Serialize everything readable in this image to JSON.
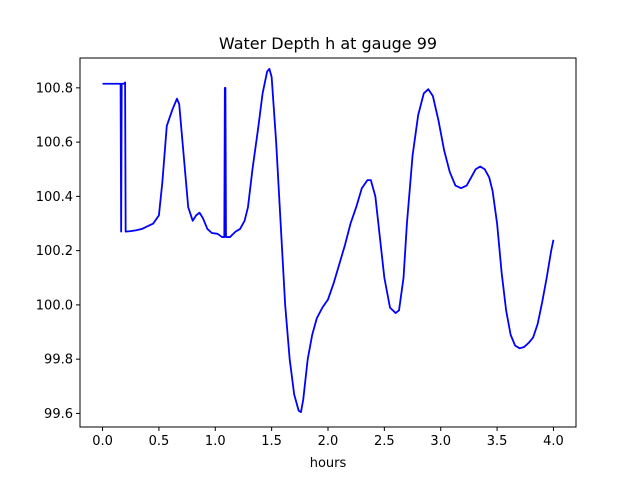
{
  "chart_data": {
    "type": "line",
    "title": "Water Depth h at gauge 99",
    "xlabel": "hours",
    "ylabel": "",
    "xlim": [
      -0.2,
      4.2
    ],
    "ylim": [
      99.55,
      100.91
    ],
    "grid": false,
    "legend": "none",
    "x_ticks": [
      {
        "value": 0.0,
        "label": "0.0"
      },
      {
        "value": 0.5,
        "label": "0.5"
      },
      {
        "value": 1.0,
        "label": "1.0"
      },
      {
        "value": 1.5,
        "label": "1.5"
      },
      {
        "value": 2.0,
        "label": "2.0"
      },
      {
        "value": 2.5,
        "label": "2.5"
      },
      {
        "value": 3.0,
        "label": "3.0"
      },
      {
        "value": 3.5,
        "label": "3.5"
      },
      {
        "value": 4.0,
        "label": "4.0"
      }
    ],
    "y_ticks": [
      {
        "value": 99.6,
        "label": "99.6"
      },
      {
        "value": 99.8,
        "label": "99.8"
      },
      {
        "value": 100.0,
        "label": "100.0"
      },
      {
        "value": 100.2,
        "label": "100.2"
      },
      {
        "value": 100.4,
        "label": "100.4"
      },
      {
        "value": 100.6,
        "label": "100.6"
      },
      {
        "value": 100.8,
        "label": "100.8"
      }
    ],
    "series": [
      {
        "color": "#0000ff",
        "points": [
          [
            0.0,
            100.815
          ],
          [
            0.16,
            100.815
          ],
          [
            0.165,
            100.27
          ],
          [
            0.17,
            100.815
          ],
          [
            0.19,
            100.815
          ],
          [
            0.2,
            100.82
          ],
          [
            0.205,
            100.27
          ],
          [
            0.25,
            100.272
          ],
          [
            0.3,
            100.275
          ],
          [
            0.35,
            100.28
          ],
          [
            0.4,
            100.29
          ],
          [
            0.45,
            100.3
          ],
          [
            0.5,
            100.33
          ],
          [
            0.53,
            100.45
          ],
          [
            0.57,
            100.66
          ],
          [
            0.62,
            100.72
          ],
          [
            0.66,
            100.76
          ],
          [
            0.68,
            100.74
          ],
          [
            0.72,
            100.55
          ],
          [
            0.76,
            100.36
          ],
          [
            0.8,
            100.31
          ],
          [
            0.83,
            100.33
          ],
          [
            0.86,
            100.34
          ],
          [
            0.89,
            100.32
          ],
          [
            0.93,
            100.28
          ],
          [
            0.97,
            100.265
          ],
          [
            1.02,
            100.262
          ],
          [
            1.06,
            100.25
          ],
          [
            1.08,
            100.25
          ],
          [
            1.085,
            100.8
          ],
          [
            1.09,
            100.8
          ],
          [
            1.095,
            100.25
          ],
          [
            1.13,
            100.25
          ],
          [
            1.18,
            100.27
          ],
          [
            1.22,
            100.28
          ],
          [
            1.26,
            100.31
          ],
          [
            1.29,
            100.36
          ],
          [
            1.33,
            100.5
          ],
          [
            1.38,
            100.65
          ],
          [
            1.42,
            100.78
          ],
          [
            1.46,
            100.86
          ],
          [
            1.48,
            100.87
          ],
          [
            1.5,
            100.84
          ],
          [
            1.54,
            100.6
          ],
          [
            1.58,
            100.3
          ],
          [
            1.62,
            100.0
          ],
          [
            1.66,
            99.8
          ],
          [
            1.7,
            99.67
          ],
          [
            1.74,
            99.61
          ],
          [
            1.76,
            99.605
          ],
          [
            1.78,
            99.65
          ],
          [
            1.82,
            99.8
          ],
          [
            1.86,
            99.89
          ],
          [
            1.9,
            99.95
          ],
          [
            1.95,
            99.99
          ],
          [
            2.0,
            100.02
          ],
          [
            2.05,
            100.08
          ],
          [
            2.1,
            100.15
          ],
          [
            2.15,
            100.22
          ],
          [
            2.2,
            100.3
          ],
          [
            2.25,
            100.36
          ],
          [
            2.3,
            100.43
          ],
          [
            2.35,
            100.46
          ],
          [
            2.38,
            100.46
          ],
          [
            2.42,
            100.4
          ],
          [
            2.46,
            100.25
          ],
          [
            2.5,
            100.1
          ],
          [
            2.55,
            99.99
          ],
          [
            2.6,
            99.97
          ],
          [
            2.63,
            99.98
          ],
          [
            2.67,
            100.1
          ],
          [
            2.7,
            100.3
          ],
          [
            2.75,
            100.55
          ],
          [
            2.8,
            100.7
          ],
          [
            2.85,
            100.78
          ],
          [
            2.89,
            100.795
          ],
          [
            2.93,
            100.77
          ],
          [
            2.98,
            100.68
          ],
          [
            3.03,
            100.57
          ],
          [
            3.08,
            100.49
          ],
          [
            3.13,
            100.44
          ],
          [
            3.18,
            100.43
          ],
          [
            3.23,
            100.44
          ],
          [
            3.27,
            100.47
          ],
          [
            3.31,
            100.5
          ],
          [
            3.35,
            100.51
          ],
          [
            3.39,
            100.5
          ],
          [
            3.43,
            100.47
          ],
          [
            3.46,
            100.42
          ],
          [
            3.5,
            100.3
          ],
          [
            3.54,
            100.12
          ],
          [
            3.58,
            99.98
          ],
          [
            3.62,
            99.89
          ],
          [
            3.66,
            99.85
          ],
          [
            3.7,
            99.84
          ],
          [
            3.74,
            99.845
          ],
          [
            3.78,
            99.86
          ],
          [
            3.82,
            99.88
          ],
          [
            3.86,
            99.93
          ],
          [
            3.9,
            100.01
          ],
          [
            3.94,
            100.1
          ],
          [
            3.98,
            100.2
          ],
          [
            4.0,
            100.24
          ]
        ]
      }
    ]
  }
}
